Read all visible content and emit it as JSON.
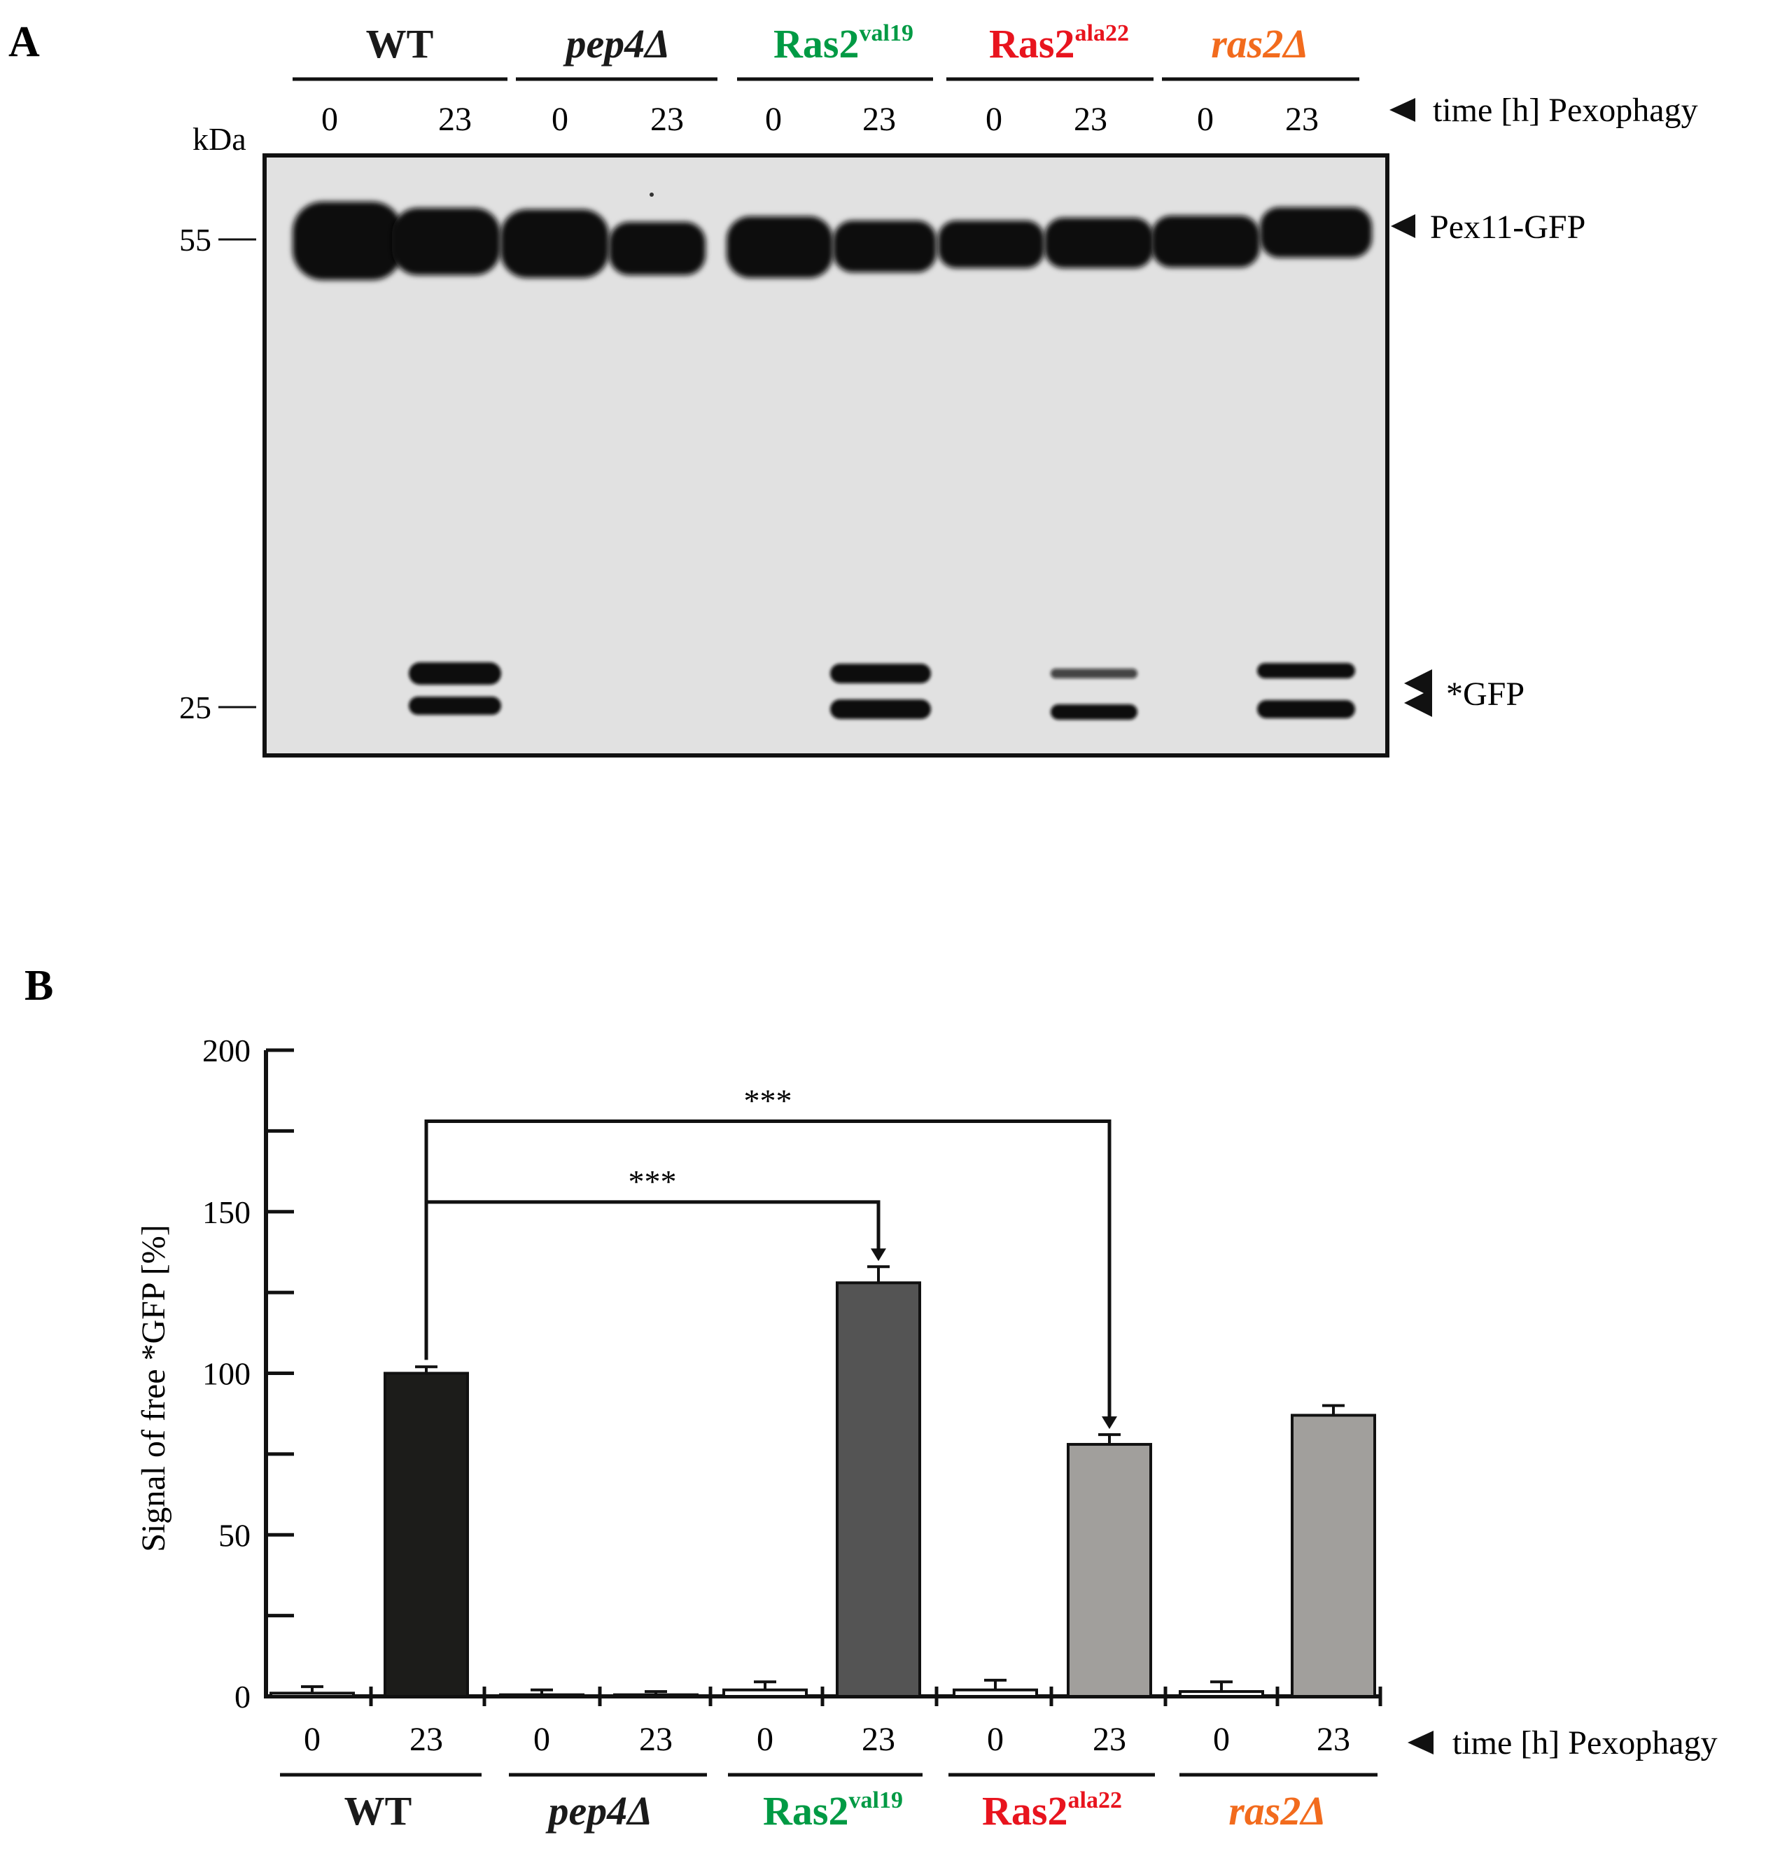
{
  "panel_a": {
    "label": "A",
    "kda_label": "kDa",
    "markers": [
      "55",
      "25"
    ],
    "time_caption": "time [h] Pexophagy",
    "band_labels": {
      "upper": "Pex11-GFP",
      "lower": "*GFP"
    },
    "groups": [
      {
        "name": "WT",
        "sup": "",
        "italic": false,
        "color": "#1a1a1a"
      },
      {
        "name": "pep4Δ",
        "sup": "",
        "italic": true,
        "color": "#1a1a1a"
      },
      {
        "name": "Ras2",
        "sup": "val19",
        "italic": false,
        "color": "#009a44"
      },
      {
        "name": "Ras2",
        "sup": "ala22",
        "italic": false,
        "color": "#e8141e"
      },
      {
        "name": "ras2Δ",
        "sup": "",
        "italic": true,
        "color": "#f26b1d"
      }
    ],
    "lanes": [
      "0",
      "23",
      "0",
      "23",
      "0",
      "23",
      "0",
      "23",
      "0",
      "23"
    ]
  },
  "panel_b": {
    "label": "B",
    "time_caption": "time [h] Pexophagy",
    "groups": [
      {
        "name": "WT",
        "sup": "",
        "italic": false,
        "color": "#1a1a1a"
      },
      {
        "name": "pep4Δ",
        "sup": "",
        "italic": true,
        "color": "#1a1a1a"
      },
      {
        "name": "Ras2",
        "sup": "val19",
        "italic": false,
        "color": "#009a44"
      },
      {
        "name": "Ras2",
        "sup": "ala22",
        "italic": false,
        "color": "#e8141e"
      },
      {
        "name": "ras2Δ",
        "sup": "",
        "italic": true,
        "color": "#f26b1d"
      }
    ]
  },
  "chart_data": {
    "type": "bar",
    "ylabel": "Signal of free *GFP [%]",
    "ylim": [
      0,
      200
    ],
    "yticks": [
      0,
      50,
      100,
      150,
      200
    ],
    "categories": [
      "0",
      "23",
      "0",
      "23",
      "0",
      "23",
      "0",
      "23",
      "0",
      "23"
    ],
    "values": [
      1,
      100,
      0.5,
      0.5,
      2,
      128,
      2,
      78,
      1.5,
      87
    ],
    "errors": [
      2,
      2,
      1.5,
      1,
      2.5,
      5,
      3,
      3,
      3,
      3
    ],
    "bar_colors": [
      "#ffffff",
      "#1c1c1a",
      "#ffffff",
      "#ffffff",
      "#ffffff",
      "#545454",
      "#ffffff",
      "#a19f9c",
      "#ffffff",
      "#a19f9c"
    ],
    "grid": false,
    "significance": [
      {
        "from": 1,
        "to": 5,
        "label": "***"
      },
      {
        "from": 1,
        "to": 7,
        "label": "***"
      }
    ]
  }
}
